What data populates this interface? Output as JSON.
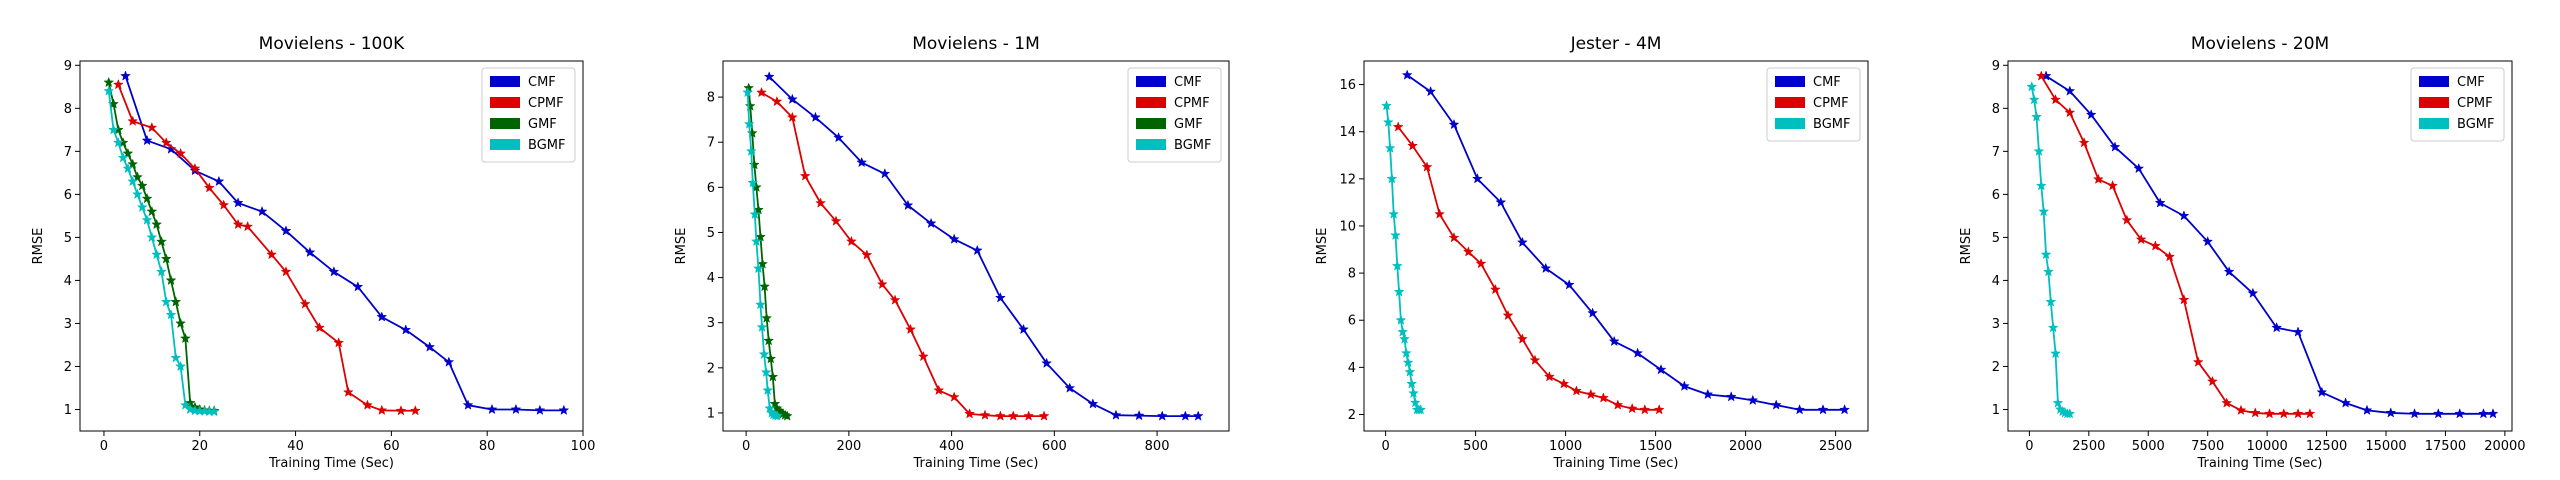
{
  "chart_data": [
    {
      "type": "line",
      "title": "Movielens - 100K",
      "xlabel": "Training Time (Sec)",
      "ylabel": "RMSE",
      "xlim": [
        -5,
        100
      ],
      "ylim": [
        0.5,
        9.1
      ],
      "xticks": [
        0,
        20,
        40,
        60,
        80,
        100
      ],
      "yticks": [
        1,
        2,
        3,
        4,
        5,
        6,
        7,
        8,
        9
      ],
      "legend_position": "top-right",
      "series": [
        {
          "name": "CMF",
          "color": "#0000cc",
          "x": [
            4.5,
            9,
            14,
            19,
            24,
            28,
            33,
            38,
            43,
            48,
            53,
            58,
            63,
            68,
            72,
            76,
            81,
            86,
            91,
            96
          ],
          "y": [
            8.75,
            7.25,
            7.05,
            6.55,
            6.3,
            5.8,
            5.6,
            5.15,
            4.65,
            4.2,
            3.85,
            3.15,
            2.85,
            2.45,
            2.1,
            1.1,
            1.0,
            1.0,
            0.98,
            0.98
          ]
        },
        {
          "name": "CPMF",
          "color": "#dd0000",
          "x": [
            3,
            6,
            10,
            13,
            16,
            19,
            22,
            25,
            28,
            30,
            35,
            38,
            42,
            45,
            49,
            51,
            55,
            58,
            62,
            65
          ],
          "y": [
            8.55,
            7.7,
            7.55,
            7.2,
            6.95,
            6.6,
            6.15,
            5.75,
            5.3,
            5.25,
            4.6,
            4.2,
            3.45,
            2.9,
            2.55,
            1.4,
            1.1,
            0.98,
            0.97,
            0.97
          ]
        },
        {
          "name": "GMF",
          "color": "#006400",
          "x": [
            1,
            2,
            3,
            4,
            5,
            6,
            7,
            8,
            9,
            10,
            11,
            12,
            13,
            14,
            15,
            16,
            17,
            18,
            19,
            20,
            21,
            22,
            23
          ],
          "y": [
            8.6,
            8.1,
            7.5,
            7.2,
            6.95,
            6.7,
            6.4,
            6.2,
            5.9,
            5.6,
            5.3,
            4.9,
            4.5,
            4.0,
            3.5,
            3.0,
            2.65,
            1.15,
            1.05,
            1.0,
            0.98,
            0.97,
            0.97
          ]
        },
        {
          "name": "BGMF",
          "color": "#00bfbf",
          "x": [
            1,
            2,
            3,
            4,
            5,
            6,
            7,
            8,
            9,
            10,
            11,
            12,
            13,
            14,
            15,
            16,
            17,
            18,
            19,
            20,
            21,
            22,
            23
          ],
          "y": [
            8.4,
            7.5,
            7.2,
            6.85,
            6.6,
            6.3,
            6.0,
            5.7,
            5.4,
            5.0,
            4.6,
            4.2,
            3.5,
            3.2,
            2.2,
            2.0,
            1.1,
            1.0,
            0.97,
            0.96,
            0.96,
            0.95,
            0.95
          ]
        }
      ]
    },
    {
      "type": "line",
      "title": "Movielens - 1M",
      "xlabel": "Training Time (Sec)",
      "ylabel": "RMSE",
      "xlim": [
        -45,
        940
      ],
      "ylim": [
        0.6,
        8.8
      ],
      "xticks": [
        0,
        200,
        400,
        600,
        800
      ],
      "yticks": [
        1,
        2,
        3,
        4,
        5,
        6,
        7,
        8
      ],
      "legend_position": "top-right",
      "series": [
        {
          "name": "CMF",
          "color": "#0000cc",
          "x": [
            45,
            90,
            135,
            180,
            225,
            270,
            315,
            360,
            405,
            450,
            495,
            540,
            585,
            630,
            675,
            720,
            765,
            810,
            855,
            880
          ],
          "y": [
            8.45,
            7.95,
            7.55,
            7.1,
            6.55,
            6.3,
            5.6,
            5.2,
            4.85,
            4.6,
            3.55,
            2.85,
            2.1,
            1.55,
            1.2,
            0.95,
            0.94,
            0.93,
            0.93,
            0.93
          ],
          "visible": true
        },
        {
          "name": "CPMF",
          "color": "#dd0000",
          "x": [
            30,
            60,
            90,
            115,
            145,
            175,
            205,
            235,
            265,
            290,
            320,
            345,
            375,
            405,
            435,
            465,
            495,
            520,
            550,
            580
          ],
          "y": [
            8.1,
            7.9,
            7.55,
            6.25,
            5.65,
            5.25,
            4.8,
            4.5,
            3.85,
            3.5,
            2.85,
            2.25,
            1.5,
            1.35,
            0.98,
            0.95,
            0.93,
            0.93,
            0.93,
            0.93
          ]
        },
        {
          "name": "GMF",
          "color": "#006400",
          "x": [
            5,
            8,
            12,
            16,
            20,
            24,
            28,
            32,
            36,
            40,
            44,
            48,
            52,
            56,
            60,
            64,
            68,
            72,
            76,
            80
          ],
          "y": [
            8.2,
            7.8,
            7.2,
            6.5,
            6.0,
            5.5,
            4.9,
            4.3,
            3.8,
            3.1,
            2.6,
            2.2,
            1.8,
            1.2,
            1.1,
            1.05,
            1.0,
            0.98,
            0.95,
            0.93
          ]
        },
        {
          "name": "BGMF",
          "color": "#00bfbf",
          "x": [
            3,
            6,
            10,
            13,
            17,
            20,
            24,
            28,
            31,
            35,
            39,
            42,
            46,
            50,
            53,
            57,
            61
          ],
          "y": [
            8.1,
            7.4,
            6.8,
            6.1,
            5.4,
            4.8,
            4.2,
            3.4,
            2.9,
            2.3,
            1.9,
            1.5,
            1.1,
            1.0,
            0.96,
            0.94,
            0.93
          ]
        }
      ]
    },
    {
      "type": "line",
      "title": "Jester - 4M",
      "xlabel": "Training Time (Sec)",
      "ylabel": "RMSE",
      "xlim": [
        -120,
        2680
      ],
      "ylim": [
        1.3,
        17.0
      ],
      "xticks": [
        0,
        500,
        1000,
        1500,
        2000,
        2500
      ],
      "yticks": [
        2,
        4,
        6,
        8,
        10,
        12,
        14,
        16
      ],
      "legend_position": "top-right",
      "series": [
        {
          "name": "CMF",
          "color": "#0000cc",
          "x": [
            120,
            250,
            380,
            510,
            640,
            760,
            890,
            1020,
            1150,
            1270,
            1400,
            1530,
            1660,
            1790,
            1920,
            2040,
            2170,
            2300,
            2430,
            2550
          ],
          "y": [
            16.4,
            15.7,
            14.3,
            12.0,
            11.0,
            9.3,
            8.2,
            7.5,
            6.3,
            5.1,
            4.6,
            3.9,
            3.2,
            2.85,
            2.75,
            2.6,
            2.4,
            2.2,
            2.2,
            2.2
          ]
        },
        {
          "name": "CPMF",
          "color": "#dd0000",
          "x": [
            70,
            150,
            230,
            300,
            380,
            460,
            530,
            610,
            680,
            760,
            830,
            910,
            990,
            1060,
            1140,
            1210,
            1290,
            1370,
            1440,
            1520
          ],
          "y": [
            14.2,
            13.4,
            12.5,
            10.5,
            9.5,
            8.9,
            8.4,
            7.3,
            6.2,
            5.2,
            4.3,
            3.6,
            3.3,
            3.0,
            2.85,
            2.7,
            2.4,
            2.25,
            2.2,
            2.2
          ]
        },
        {
          "name": "BGMF",
          "color": "#00bfbf",
          "x": [
            5,
            15,
            25,
            35,
            45,
            55,
            65,
            75,
            85,
            95,
            105,
            115,
            125,
            135,
            145,
            155,
            165,
            175,
            185,
            195
          ],
          "y": [
            15.1,
            14.4,
            13.3,
            12.0,
            10.5,
            9.6,
            8.3,
            7.2,
            6.0,
            5.5,
            5.2,
            4.6,
            4.2,
            3.8,
            3.3,
            2.9,
            2.5,
            2.2,
            2.2,
            2.2
          ]
        }
      ]
    },
    {
      "type": "line",
      "title": "Movielens - 20M",
      "xlabel": "Training Time (Sec)",
      "ylabel": "RMSE",
      "xlim": [
        -900,
        20300
      ],
      "ylim": [
        0.5,
        9.1
      ],
      "xticks": [
        0,
        2500,
        5000,
        7500,
        10000,
        12500,
        15000,
        17500,
        20000
      ],
      "yticks": [
        1,
        2,
        3,
        4,
        5,
        6,
        7,
        8,
        9
      ],
      "legend_position": "top-right",
      "series": [
        {
          "name": "CMF",
          "color": "#0000cc",
          "x": [
            700,
            1700,
            2600,
            3600,
            4600,
            5500,
            6500,
            7500,
            8400,
            9400,
            10400,
            11300,
            12300,
            13300,
            14200,
            15200,
            16200,
            17200,
            18100,
            19100,
            19500
          ],
          "y": [
            8.75,
            8.4,
            7.85,
            7.1,
            6.6,
            5.8,
            5.5,
            4.9,
            4.2,
            3.7,
            2.9,
            2.8,
            1.4,
            1.15,
            0.98,
            0.92,
            0.9,
            0.9,
            0.9,
            0.9,
            0.9
          ]
        },
        {
          "name": "CPMF",
          "color": "#dd0000",
          "x": [
            500,
            1100,
            1700,
            2300,
            2900,
            3500,
            4100,
            4700,
            5300,
            5900,
            6500,
            7100,
            7700,
            8300,
            8900,
            9500,
            10100,
            10700,
            11300,
            11800
          ],
          "y": [
            8.75,
            8.2,
            7.9,
            7.2,
            6.35,
            6.2,
            5.4,
            4.95,
            4.8,
            4.55,
            3.55,
            2.1,
            1.65,
            1.15,
            0.98,
            0.92,
            0.9,
            0.9,
            0.9,
            0.9
          ]
        },
        {
          "name": "BGMF",
          "color": "#00bfbf",
          "x": [
            100,
            200,
            300,
            400,
            500,
            600,
            700,
            800,
            900,
            1000,
            1100,
            1200,
            1300,
            1400,
            1500,
            1600,
            1700
          ],
          "y": [
            8.5,
            8.2,
            7.8,
            7.0,
            6.2,
            5.6,
            4.6,
            4.2,
            3.5,
            2.9,
            2.3,
            1.15,
            1.0,
            0.95,
            0.92,
            0.9,
            0.9
          ]
        }
      ]
    }
  ]
}
